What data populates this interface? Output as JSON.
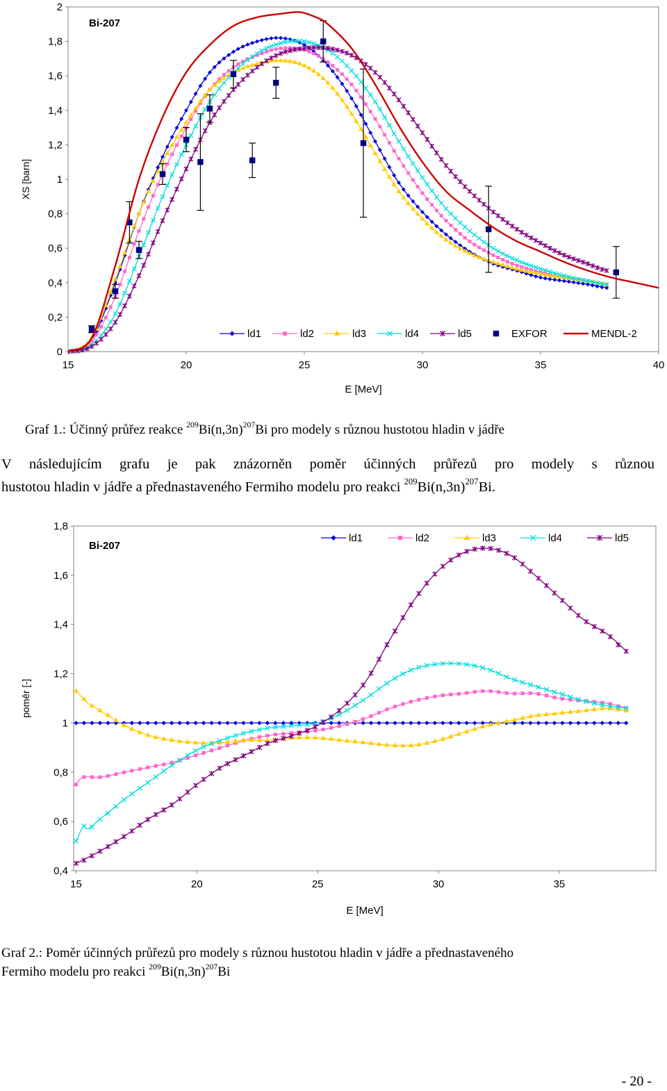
{
  "charts": {
    "chart_data": [
      {
        "type": "line",
        "title": "Bi-207",
        "xlabel": "E [MeV]",
        "ylabel": "XS [barn]",
        "xlim": [
          15,
          40
        ],
        "ylim": [
          0,
          2
        ],
        "xticks": [
          "15",
          "20",
          "25",
          "30",
          "35",
          "40"
        ],
        "yticks": [
          "0",
          "0,2",
          "0,4",
          "0,6",
          "0,8",
          "1",
          "1,2",
          "1,4",
          "1,6",
          "1,8",
          "2"
        ],
        "xtick_values": [
          15,
          20,
          25,
          30,
          35,
          40
        ],
        "ytick_values": [
          0,
          0.2,
          0.4,
          0.6,
          0.8,
          1,
          1.2,
          1.4,
          1.6,
          1.8,
          2
        ],
        "legend_position": "bottom-right",
        "legend": [
          "ld1",
          "ld2",
          "ld3",
          "ld4",
          "ld5",
          "EXFOR",
          "MENDL-2"
        ],
        "series": [
          {
            "name": "ld1",
            "color": "#0000dd",
            "marker": "diamond",
            "x": [
              15,
              16,
              17,
              18,
              19,
              20,
              21,
              22,
              23,
              24,
              25,
              26,
              27,
              28,
              29,
              30,
              31,
              32,
              33,
              34,
              35,
              36,
              37,
              37.8
            ],
            "y": [
              0,
              0.07,
              0.4,
              0.8,
              1.13,
              1.4,
              1.62,
              1.74,
              1.8,
              1.82,
              1.78,
              1.66,
              1.47,
              1.22,
              0.98,
              0.81,
              0.68,
              0.58,
              0.51,
              0.47,
              0.43,
              0.41,
              0.39,
              0.37
            ]
          },
          {
            "name": "ld2",
            "color": "#ff66cc",
            "marker": "square",
            "x": [
              15,
              16,
              17,
              18,
              19,
              20,
              21,
              22,
              23,
              24,
              25,
              26,
              27,
              28,
              29,
              30,
              31,
              32,
              33,
              34,
              35,
              36,
              37,
              37.8
            ],
            "y": [
              0,
              0.06,
              0.32,
              0.7,
              1.03,
              1.3,
              1.52,
              1.65,
              1.72,
              1.76,
              1.75,
              1.68,
              1.55,
              1.35,
              1.12,
              0.92,
              0.76,
              0.64,
              0.56,
              0.5,
              0.46,
              0.43,
              0.41,
              0.39
            ]
          },
          {
            "name": "ld3",
            "color": "#ffcc00",
            "marker": "triangle",
            "x": [
              15,
              16,
              17,
              18,
              19,
              20,
              21,
              22,
              23,
              24,
              25,
              26,
              27,
              28,
              29,
              30,
              31,
              32,
              33,
              34,
              35,
              36,
              37,
              37.8
            ],
            "y": [
              0,
              0.08,
              0.42,
              0.8,
              1.1,
              1.33,
              1.52,
              1.62,
              1.67,
              1.69,
              1.66,
              1.56,
              1.38,
              1.15,
              0.93,
              0.77,
              0.65,
              0.57,
              0.52,
              0.48,
              0.45,
              0.43,
              0.41,
              0.39
            ]
          },
          {
            "name": "ld4",
            "color": "#00dddd",
            "marker": "x",
            "x": [
              15,
              16,
              17,
              18,
              19,
              20,
              21,
              22,
              23,
              24,
              25,
              26,
              27,
              28,
              29,
              30,
              31,
              32,
              33,
              34,
              35,
              36,
              37,
              37.8
            ],
            "y": [
              0,
              0.04,
              0.22,
              0.55,
              0.9,
              1.2,
              1.45,
              1.62,
              1.73,
              1.79,
              1.8,
              1.75,
              1.63,
              1.45,
              1.22,
              1.01,
              0.83,
              0.7,
              0.6,
              0.53,
              0.48,
              0.44,
              0.41,
              0.39
            ]
          },
          {
            "name": "ld5",
            "color": "#800080",
            "marker": "star",
            "x": [
              15,
              16,
              17,
              18,
              19,
              20,
              21,
              22,
              23,
              24,
              25,
              26,
              27,
              28,
              29,
              30,
              31,
              32,
              33,
              34,
              35,
              36,
              37,
              37.8
            ],
            "y": [
              0,
              0.03,
              0.17,
              0.44,
              0.76,
              1.06,
              1.33,
              1.52,
              1.65,
              1.73,
              1.76,
              1.76,
              1.72,
              1.62,
              1.46,
              1.27,
              1.08,
              0.93,
              0.81,
              0.71,
              0.63,
              0.56,
              0.51,
              0.47
            ]
          },
          {
            "name": "EXFOR",
            "color": "#000080",
            "marker": "square-filled",
            "x": [
              16,
              17,
              17.6,
              18,
              19,
              20,
              20.6,
              21,
              22,
              22.8,
              23.8,
              25.8,
              27.5,
              32.8,
              38.2
            ],
            "y": [
              0.13,
              0.35,
              0.75,
              0.59,
              1.03,
              1.23,
              1.1,
              1.41,
              1.61,
              1.11,
              1.56,
              1.8,
              1.21,
              0.71,
              0.46
            ],
            "err": [
              0.02,
              0.04,
              0.12,
              0.05,
              0.06,
              0.07,
              0.28,
              0.08,
              0.08,
              0.1,
              0.09,
              0.12,
              0.43,
              0.25,
              0.15
            ]
          },
          {
            "name": "MENDL-2",
            "color": "#cc0000",
            "marker": "none",
            "x": [
              15,
              16,
              17,
              18,
              19,
              20,
              21,
              22,
              23,
              24,
              24.8,
              25.5,
              26,
              27,
              28,
              29,
              30,
              31,
              32,
              33,
              34,
              35,
              36,
              37,
              38,
              39,
              40
            ],
            "y": [
              0,
              0.08,
              0.5,
              1.0,
              1.36,
              1.62,
              1.78,
              1.89,
              1.94,
              1.96,
              1.97,
              1.94,
              1.9,
              1.76,
              1.55,
              1.31,
              1.1,
              0.93,
              0.82,
              0.72,
              0.64,
              0.58,
              0.52,
              0.47,
              0.43,
              0.4,
              0.37
            ]
          }
        ]
      },
      {
        "type": "line",
        "title": "Bi-207",
        "xlabel": "E [MeV]",
        "ylabel": "poměr [-]",
        "xlim": [
          14.9,
          39
        ],
        "ylim": [
          0.4,
          1.8
        ],
        "xticks": [
          "15",
          "20",
          "25",
          "30",
          "35"
        ],
        "yticks": [
          "0,4",
          "0,6",
          "0,8",
          "1",
          "1,2",
          "1,4",
          "1,6",
          "1,8"
        ],
        "xtick_values": [
          15,
          20,
          25,
          30,
          35
        ],
        "ytick_values": [
          0.4,
          0.6,
          0.8,
          1,
          1.2,
          1.4,
          1.6,
          1.8
        ],
        "legend_position": "top-right",
        "legend": [
          "ld1",
          "ld2",
          "ld3",
          "ld4",
          "ld5"
        ],
        "series": [
          {
            "name": "ld1",
            "color": "#0000dd",
            "marker": "diamond",
            "x": [
              15,
              17,
              20,
              23,
              26,
              29,
              32,
              35,
              37.8
            ],
            "y": [
              1,
              1,
              1,
              1,
              1,
              1,
              1,
              1,
              1
            ]
          },
          {
            "name": "ld2",
            "color": "#ff66cc",
            "marker": "square",
            "x": [
              15,
              15.3,
              16,
              17,
              18,
              19,
              20,
              21,
              22,
              23,
              24,
              25,
              26,
              27,
              28,
              29,
              30,
              31,
              32,
              33,
              34,
              35,
              36,
              37,
              37.8
            ],
            "y": [
              0.75,
              0.78,
              0.78,
              0.8,
              0.82,
              0.84,
              0.87,
              0.9,
              0.93,
              0.95,
              0.96,
              0.97,
              0.99,
              1.02,
              1.06,
              1.09,
              1.11,
              1.12,
              1.13,
              1.12,
              1.12,
              1.1,
              1.09,
              1.08,
              1.06
            ]
          },
          {
            "name": "ld3",
            "color": "#ffcc00",
            "marker": "triangle",
            "x": [
              15,
              15.5,
              16,
              17,
              18,
              19,
              20,
              21,
              22,
              23,
              24,
              25,
              26,
              27,
              28,
              29,
              30,
              31,
              32,
              33,
              34,
              35,
              36,
              37,
              37.8
            ],
            "y": [
              1.13,
              1.08,
              1.05,
              0.99,
              0.95,
              0.93,
              0.92,
              0.92,
              0.93,
              0.93,
              0.94,
              0.94,
              0.93,
              0.92,
              0.91,
              0.91,
              0.93,
              0.96,
              0.99,
              1.01,
              1.03,
              1.04,
              1.05,
              1.06,
              1.05
            ]
          },
          {
            "name": "ld4",
            "color": "#00dddd",
            "marker": "x",
            "x": [
              15,
              15.3,
              15.5,
              16,
              17,
              18,
              19,
              20,
              21,
              22,
              23,
              24,
              25,
              26,
              27,
              28,
              29,
              30,
              31,
              32,
              33,
              34,
              35,
              36,
              37,
              37.8
            ],
            "y": [
              0.52,
              0.58,
              0.57,
              0.61,
              0.69,
              0.76,
              0.83,
              0.89,
              0.93,
              0.96,
              0.98,
              0.99,
              1.0,
              1.04,
              1.1,
              1.17,
              1.22,
              1.24,
              1.24,
              1.22,
              1.18,
              1.15,
              1.12,
              1.09,
              1.07,
              1.06
            ]
          },
          {
            "name": "ld5",
            "color": "#800080",
            "marker": "star",
            "x": [
              15,
              16,
              17,
              18,
              19,
              20,
              21,
              22,
              23,
              24,
              25,
              26,
              27,
              28,
              29,
              30,
              31,
              32,
              33,
              34,
              35,
              36,
              37,
              37.8
            ],
            "y": [
              0.43,
              0.48,
              0.54,
              0.61,
              0.67,
              0.75,
              0.82,
              0.87,
              0.92,
              0.95,
              0.99,
              1.06,
              1.17,
              1.34,
              1.5,
              1.62,
              1.69,
              1.71,
              1.68,
              1.6,
              1.51,
              1.42,
              1.36,
              1.29
            ]
          }
        ]
      }
    ]
  },
  "caption1": {
    "prefix": "Graf 1.: Účinný průřez reakce ",
    "sup_a": "209",
    "mid": "Bi(n,3n)",
    "sup_b": "207",
    "suffix": "Bi pro modely s různou hustotou hladin v jádře"
  },
  "paragraph": {
    "line1": "V následujícím grafu je pak znázorněn poměr účinných průřezů pro modely s různou",
    "line2_prefix": "hustotou hladin v jádře a přednastaveného Fermiho modelu pro reakci ",
    "sup_a": "209",
    "mid": "Bi(n,3n)",
    "sup_b": "207",
    "suffix": "Bi."
  },
  "caption2": {
    "line1": "Graf 2.: Poměr účinných průřezů pro modely s různou hustotou hladin v jádře a přednastaveného",
    "line2_prefix": "Fermiho modelu pro reakci ",
    "sup_a": "209",
    "mid": "Bi(n,3n)",
    "sup_b": "207",
    "suffix": "Bi"
  },
  "page_number": "- 20 -"
}
